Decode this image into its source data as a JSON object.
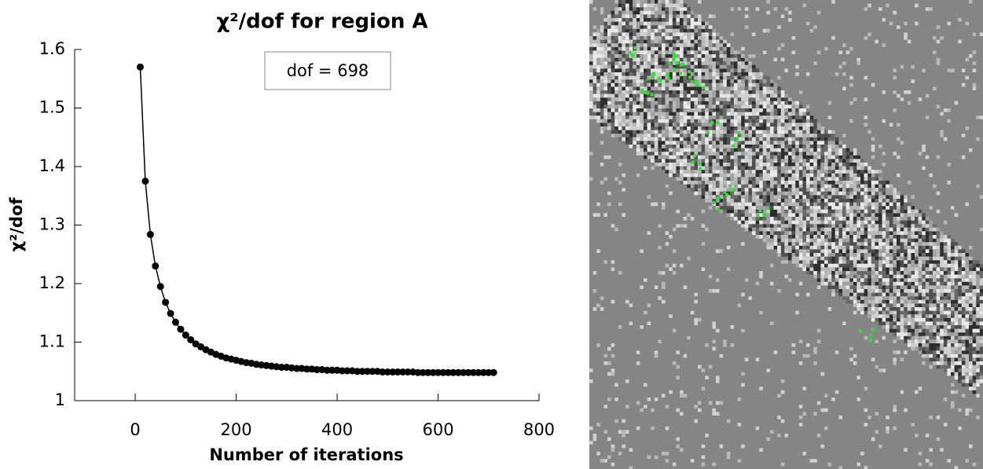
{
  "chart_data": {
    "type": "line",
    "title": "χ²/dof for region A",
    "x_label": "Number of iterations",
    "y_label": "χ²/dof",
    "annotation": "dof = 698",
    "color": "#000000",
    "x": [
      10,
      20,
      30,
      40,
      50,
      60,
      70,
      80,
      90,
      100,
      110,
      120,
      130,
      140,
      150,
      160,
      170,
      180,
      190,
      200,
      210,
      220,
      230,
      240,
      250,
      260,
      270,
      280,
      290,
      300,
      310,
      320,
      330,
      340,
      350,
      360,
      370,
      380,
      390,
      400,
      410,
      420,
      430,
      440,
      450,
      460,
      470,
      480,
      490,
      500,
      510,
      520,
      530,
      540,
      550,
      560,
      570,
      580,
      590,
      600,
      610,
      620,
      630,
      640,
      650,
      660,
      670,
      680,
      690,
      700,
      710
    ],
    "values": [
      1.57,
      1.375,
      1.284,
      1.23,
      1.195,
      1.168,
      1.149,
      1.134,
      1.122,
      1.112,
      1.104,
      1.097,
      1.092,
      1.087,
      1.083,
      1.079,
      1.076,
      1.073,
      1.071,
      1.069,
      1.067,
      1.065,
      1.064,
      1.062,
      1.061,
      1.06,
      1.059,
      1.058,
      1.057,
      1.057,
      1.056,
      1.055,
      1.055,
      1.054,
      1.054,
      1.053,
      1.053,
      1.052,
      1.052,
      1.052,
      1.051,
      1.051,
      1.051,
      1.05,
      1.05,
      1.05,
      1.05,
      1.05,
      1.049,
      1.049,
      1.049,
      1.049,
      1.049,
      1.049,
      1.049,
      1.048,
      1.048,
      1.048,
      1.048,
      1.048,
      1.048,
      1.048,
      1.048,
      1.048,
      1.048,
      1.048,
      1.048,
      1.048,
      1.048,
      1.048,
      1.048
    ],
    "xlim": [
      -120,
      800
    ],
    "ylim": [
      1,
      1.6
    ],
    "xticks": [
      0,
      200,
      400,
      600,
      800
    ],
    "yticks": [
      1,
      1.1,
      1.2,
      1.3,
      1.4,
      1.5,
      1.6
    ]
  }
}
